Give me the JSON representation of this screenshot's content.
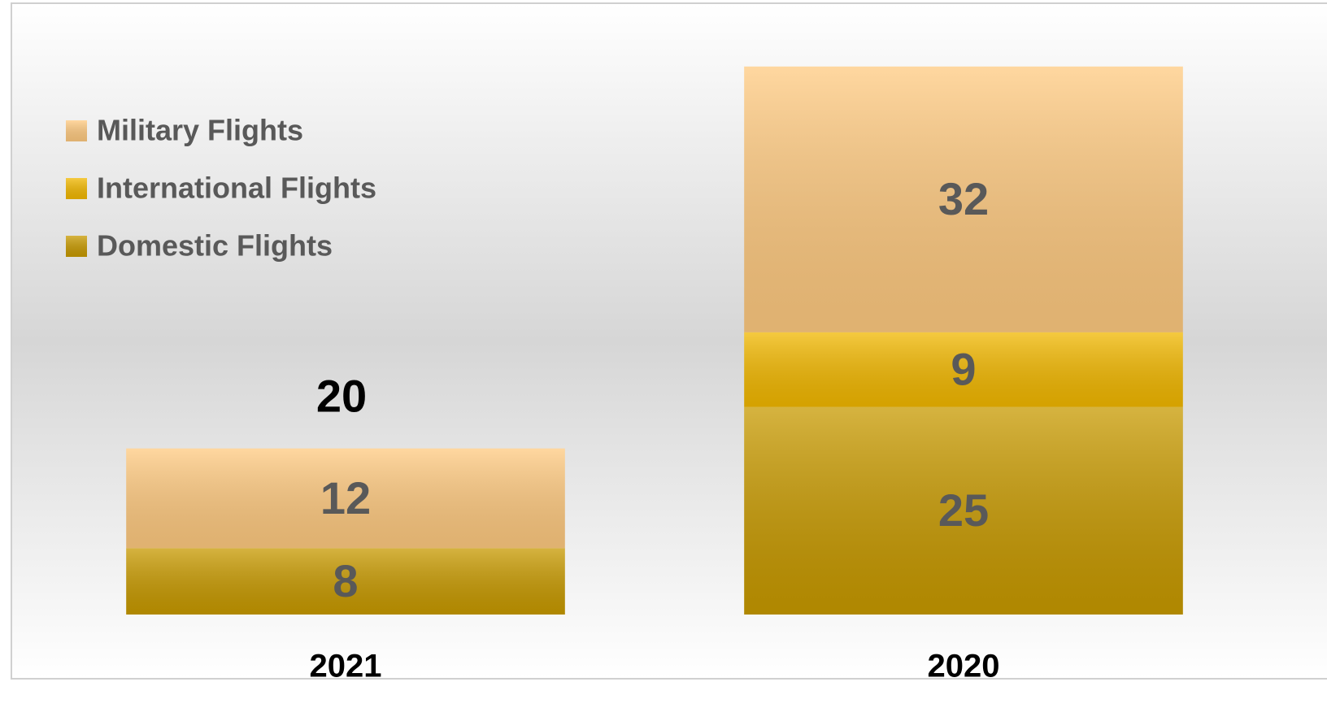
{
  "chart_data": {
    "type": "stacked_bar",
    "categories": [
      "2021",
      "2020"
    ],
    "series": [
      {
        "name": "Domestic Flights",
        "color": "#c89a00",
        "values": [
          8,
          25
        ]
      },
      {
        "name": "International Flights",
        "color": "#f2b800",
        "values": [
          null,
          9
        ]
      },
      {
        "name": "Military Flights",
        "color": "#ffca80",
        "values": [
          12,
          32
        ]
      }
    ],
    "totals": [
      20,
      null
    ],
    "ylim": [
      0,
      70
    ],
    "legend": "top-left"
  }
}
